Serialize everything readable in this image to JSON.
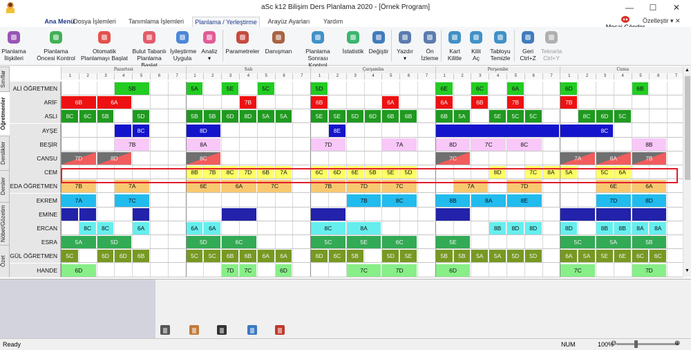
{
  "window": {
    "title": "aSc k12 Bilişim Ders Planlama 2020  - [Örnek Program]",
    "minimize": "—",
    "maximize": "☐",
    "close": "✕"
  },
  "menu": {
    "tabs": [
      "Ana Menü",
      "Dosya İşlemleri",
      "Tanımlama İşlemleri",
      "Planlama / Yerleştirme",
      "Arayüz Ayarları",
      "Yardım"
    ],
    "mesaj": "Mesaj Gönder",
    "ozellestir": "Özelleştir ▾ ✕"
  },
  "ribbon": [
    {
      "l1": "Planlama",
      "l2": "İlişkileri",
      "icon": "network-icon",
      "color": "#8e44ad"
    },
    {
      "l1": "Planlama",
      "l2": "Öncesi Kontrol",
      "icon": "check-circle-icon",
      "color": "#2eaa44"
    },
    {
      "l1": "Otomatik",
      "l2": "Planlamayı Başlat",
      "icon": "siren-icon",
      "color": "#e0403a"
    },
    {
      "l1": "Bulut Tabanlı",
      "l2": "Planlama Başlat",
      "icon": "cloud-person-icon",
      "color": "#e04a5a"
    },
    {
      "l1": "İyileştirme",
      "l2": "Uygula",
      "icon": "improve-icon",
      "color": "#3a7bd5"
    },
    {
      "l1": "Analiz",
      "l2": "▾",
      "icon": "flask-icon",
      "color": "#e04a8a"
    },
    {
      "l1": "Parametreler",
      "l2": "",
      "icon": "abacus-icon",
      "color": "#c0392b"
    },
    {
      "l1": "Danışman",
      "l2": "",
      "icon": "gavel-icon",
      "color": "#a0522d"
    },
    {
      "l1": "Planlama Sonrası",
      "l2": "Kontrol",
      "icon": "check-list-icon",
      "color": "#2e86c1"
    },
    {
      "l1": "İstatistik",
      "l2": "",
      "icon": "pie-chart-icon",
      "color": "#27ae60"
    },
    {
      "l1": "Değiştir",
      "l2": "",
      "icon": "swap-person-icon",
      "color": "#2e6fb5"
    },
    {
      "l1": "Yazdır",
      "l2": "▾",
      "icon": "printer-icon",
      "color": "#4a6fa5"
    },
    {
      "l1": "Ön",
      "l2": "İzleme",
      "icon": "preview-icon",
      "color": "#4a6fa5"
    },
    {
      "l1": "Kart",
      "l2": "Kilitle",
      "icon": "lock-icon",
      "color": "#2e86c1"
    },
    {
      "l1": "Kilit",
      "l2": "Aç",
      "icon": "unlock-icon",
      "color": "#2e86c1"
    },
    {
      "l1": "Tabloyu",
      "l2": "Temizle",
      "icon": "recycle-icon",
      "color": "#2e86c1"
    },
    {
      "l1": "Geri",
      "l2": "Ctrl+Z",
      "icon": "undo-icon",
      "color": "#2e6fb5"
    },
    {
      "l1": "Tekrarla",
      "l2": "Ctrl+Y",
      "icon": "redo-icon",
      "color": "#a8a8a8"
    }
  ],
  "sidetabs": [
    "Sınıflar",
    "Öğretmenler",
    "Derslikler",
    "Dersler",
    "Nöbet/Gözetim",
    "Özet"
  ],
  "days": [
    "Pazartesi",
    "Salı",
    "Çarşamba",
    "Perşembe",
    "Cuma"
  ],
  "periods": [
    "1",
    "2",
    "3",
    "4",
    "5",
    "6",
    "7"
  ],
  "colors": {
    "green": "#22cc22",
    "red": "#ee1111",
    "darkgreen": "#1f9a1f",
    "blue": "#1414cc",
    "pink": "#f8c8f8",
    "gray": "#777777",
    "yellow": "#ffff66",
    "orange": "#f8c870",
    "sky": "#22bbee",
    "navy": "#2222aa",
    "cyan": "#66eeee",
    "mid": "#33aa55",
    "olive": "#779922",
    "lightgreen": "#88ee88"
  },
  "teachers": [
    {
      "name": "ALİ ÖĞRETMEN",
      "color": "green",
      "cells": [
        [
          3,
          "5B",
          2
        ],
        [
          7,
          "5A",
          1
        ],
        [
          9,
          "5E",
          1
        ],
        [
          11,
          "5C",
          1
        ],
        [
          14,
          "5D",
          1
        ],
        [
          21,
          "6E",
          1
        ],
        [
          23,
          "6C",
          1
        ],
        [
          25,
          "6A",
          1
        ],
        [
          28,
          "6D",
          1
        ],
        [
          32,
          "6B",
          1
        ]
      ]
    },
    {
      "name": "ARİF ÖĞRETMEN",
      "color": "red",
      "cells": [
        [
          0,
          "6B",
          2
        ],
        [
          2,
          "6A",
          2
        ],
        [
          10,
          "7B",
          1
        ],
        [
          14,
          "6B",
          1
        ],
        [
          18,
          "6A",
          1
        ],
        [
          21,
          "6A",
          1
        ],
        [
          23,
          "6B",
          1
        ],
        [
          25,
          "7B",
          1
        ],
        [
          28,
          "7B",
          1
        ]
      ]
    },
    {
      "name": "ASLI ÖĞRETMEN",
      "color": "darkgreen",
      "cells": [
        [
          0,
          "8C",
          1
        ],
        [
          1,
          "6C",
          1
        ],
        [
          2,
          "5B",
          1
        ],
        [
          4,
          "5D",
          1
        ],
        [
          7,
          "5B",
          1
        ],
        [
          8,
          "5B",
          1
        ],
        [
          9,
          "6D",
          1
        ],
        [
          10,
          "8D",
          1
        ],
        [
          11,
          "5A",
          1
        ],
        [
          12,
          "5A",
          1
        ],
        [
          14,
          "5E",
          1
        ],
        [
          15,
          "5E",
          1
        ],
        [
          16,
          "5D",
          1
        ],
        [
          17,
          "6D",
          1
        ],
        [
          18,
          "6B",
          1
        ],
        [
          19,
          "6B",
          1
        ],
        [
          21,
          "6B",
          1
        ],
        [
          22,
          "5A",
          1
        ],
        [
          24,
          "5E",
          1
        ],
        [
          25,
          "5C",
          1
        ],
        [
          26,
          "5C",
          1
        ],
        [
          29,
          "8C",
          1
        ],
        [
          30,
          "6D",
          1
        ],
        [
          31,
          "5C",
          1
        ]
      ]
    },
    {
      "name": "AYŞE ÖĞRETMEN",
      "color": "blue",
      "cells": [
        [
          3,
          "",
          1
        ],
        [
          4,
          "8C",
          1
        ],
        [
          7,
          "8D",
          2
        ],
        [
          15,
          "8E",
          1
        ],
        [
          21,
          "",
          7
        ],
        [
          28,
          "",
          3
        ],
        [
          30,
          "8C",
          1
        ]
      ]
    },
    {
      "name": "BEŞİR ÖĞRETMEN",
      "color": "pink",
      "cells": [
        [
          3,
          "7B",
          2
        ],
        [
          7,
          "8A",
          2
        ],
        [
          14,
          "7D",
          2
        ],
        [
          18,
          "7A",
          2
        ],
        [
          21,
          "8D",
          2
        ],
        [
          23,
          "7C",
          2
        ],
        [
          25,
          "8C",
          2
        ],
        [
          32,
          "8B",
          2
        ]
      ]
    },
    {
      "name": "CANSU ÖĞRETMEN",
      "color": "gray",
      "cells": [
        [
          0,
          "7D",
          2,
          1
        ],
        [
          2,
          "8D",
          2,
          1
        ],
        [
          7,
          "8C",
          2,
          1
        ],
        [
          21,
          "7C",
          2,
          1
        ],
        [
          28,
          "7A",
          2,
          1
        ],
        [
          30,
          "8A",
          2,
          1
        ],
        [
          32,
          "7B",
          2,
          1
        ]
      ]
    },
    {
      "name": "CEM ÖĞRETMEN",
      "color": "yellow",
      "cells": [
        [
          7,
          "8B",
          1
        ],
        [
          8,
          "7B",
          1
        ],
        [
          9,
          "8C",
          1
        ],
        [
          10,
          "7D",
          1
        ],
        [
          11,
          "6B",
          1
        ],
        [
          12,
          "7A",
          1
        ],
        [
          14,
          "6C",
          1
        ],
        [
          15,
          "6D",
          1
        ],
        [
          16,
          "6E",
          1
        ],
        [
          17,
          "5B",
          1
        ],
        [
          18,
          "5E",
          1
        ],
        [
          19,
          "5D",
          1
        ],
        [
          24,
          "8D",
          1
        ],
        [
          26,
          "7C",
          1
        ],
        [
          27,
          "8A",
          1
        ],
        [
          28,
          "5A",
          1
        ],
        [
          30,
          "5C",
          1
        ],
        [
          31,
          "6A",
          1
        ]
      ]
    },
    {
      "name": "EDA ÖĞRETMEN",
      "color": "orange",
      "cells": [
        [
          0,
          "7B",
          2
        ],
        [
          3,
          "7A",
          2
        ],
        [
          7,
          "6E",
          2
        ],
        [
          9,
          "6A",
          2
        ],
        [
          11,
          "7C",
          2
        ],
        [
          14,
          "7B",
          2
        ],
        [
          16,
          "7D",
          2
        ],
        [
          18,
          "7C",
          2
        ],
        [
          22,
          "7A",
          2
        ],
        [
          25,
          "7D",
          2
        ],
        [
          30,
          "6E",
          2
        ],
        [
          32,
          "6A",
          2
        ]
      ]
    },
    {
      "name": "EKREM ÖĞRETMEN",
      "color": "sky",
      "cells": [
        [
          0,
          "7A",
          2
        ],
        [
          3,
          "7C",
          2
        ],
        [
          16,
          "7B",
          2
        ],
        [
          18,
          "8C",
          2
        ],
        [
          21,
          "8B",
          2
        ],
        [
          23,
          "8A",
          2
        ],
        [
          25,
          "8E",
          2
        ],
        [
          30,
          "7D",
          2
        ],
        [
          32,
          "8D",
          2
        ]
      ]
    },
    {
      "name": "EMİNE ÖĞRETMEN",
      "color": "navy",
      "cells": [
        [
          0,
          "",
          1
        ],
        [
          1,
          "",
          1
        ],
        [
          4,
          "",
          1
        ],
        [
          9,
          "",
          2
        ],
        [
          14,
          "",
          2
        ],
        [
          21,
          "",
          2
        ],
        [
          28,
          "",
          2
        ],
        [
          30,
          "",
          2
        ],
        [
          32,
          "",
          2
        ]
      ]
    },
    {
      "name": "ERCAN ÖĞRETMEN",
      "color": "cyan",
      "cells": [
        [
          1,
          "8C",
          1
        ],
        [
          2,
          "8C",
          1
        ],
        [
          4,
          "6A",
          1
        ],
        [
          7,
          "6A",
          1
        ],
        [
          8,
          "6A",
          1
        ],
        [
          14,
          "8C",
          2
        ],
        [
          16,
          "8A",
          2
        ],
        [
          24,
          "8B",
          1
        ],
        [
          25,
          "8D",
          1
        ],
        [
          26,
          "8D",
          1
        ],
        [
          28,
          "8D",
          1
        ],
        [
          30,
          "8B",
          1
        ],
        [
          31,
          "8B",
          1
        ],
        [
          32,
          "8A",
          1
        ],
        [
          33,
          "8A",
          1
        ]
      ]
    },
    {
      "name": "ESRA ÖĞRETMEN",
      "color": "mid",
      "cells": [
        [
          0,
          "5A",
          2
        ],
        [
          2,
          "5D",
          2
        ],
        [
          7,
          "5D",
          2
        ],
        [
          9,
          "6C",
          2
        ],
        [
          14,
          "5C",
          2
        ],
        [
          16,
          "5E",
          2
        ],
        [
          18,
          "6C",
          2
        ],
        [
          21,
          "5E",
          2
        ],
        [
          28,
          "5C",
          2
        ],
        [
          30,
          "5A",
          2
        ],
        [
          32,
          "5B",
          2
        ]
      ]
    },
    {
      "name": "GÜL ÖĞRETMEN",
      "color": "olive",
      "cells": [
        [
          0,
          "5C",
          1
        ],
        [
          2,
          "6D",
          1
        ],
        [
          3,
          "6D",
          1
        ],
        [
          4,
          "6B",
          1
        ],
        [
          7,
          "5C",
          1
        ],
        [
          8,
          "5C",
          1
        ],
        [
          9,
          "6B",
          1
        ],
        [
          10,
          "6B",
          1
        ],
        [
          11,
          "6A",
          1
        ],
        [
          12,
          "6A",
          1
        ],
        [
          14,
          "6D",
          1
        ],
        [
          15,
          "6C",
          1
        ],
        [
          16,
          "5B",
          1
        ],
        [
          18,
          "5D",
          1
        ],
        [
          19,
          "5E",
          1
        ],
        [
          21,
          "5B",
          1
        ],
        [
          22,
          "5B",
          1
        ],
        [
          23,
          "5A",
          1
        ],
        [
          24,
          "5A",
          1
        ],
        [
          25,
          "5D",
          1
        ],
        [
          26,
          "5D",
          1
        ],
        [
          28,
          "6A",
          1
        ],
        [
          29,
          "5A",
          1
        ],
        [
          30,
          "5E",
          1
        ],
        [
          31,
          "6E",
          1
        ],
        [
          32,
          "6C",
          1
        ],
        [
          33,
          "6C",
          1
        ]
      ]
    },
    {
      "name": "HANDE ÖĞRETMEN",
      "color": "lightgreen",
      "cells": [
        [
          0,
          "6D",
          2
        ],
        [
          9,
          "7D",
          1
        ],
        [
          10,
          "7C",
          1
        ],
        [
          12,
          "6D",
          1
        ],
        [
          16,
          "7C",
          2
        ],
        [
          18,
          "7D",
          2
        ],
        [
          21,
          "6D",
          2
        ],
        [
          28,
          "7C",
          2
        ],
        [
          32,
          "7D",
          2
        ]
      ]
    }
  ],
  "bottom_icons": [
    "building-icon",
    "teacher-icon",
    "graduation-cap-icon",
    "classroom-icon",
    "door-icon"
  ],
  "status": {
    "text": "Ready",
    "num": "NUM",
    "zoom": "100%",
    "zoom_minus": "⊖",
    "zoom_plus": "⊕"
  }
}
